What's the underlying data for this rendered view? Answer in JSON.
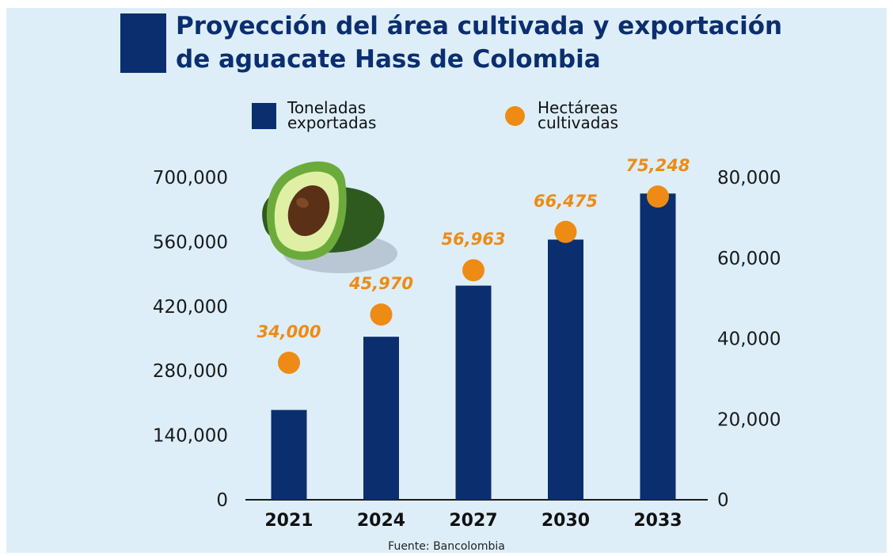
{
  "title_lines": [
    "Proyección del área cultivada y exportación",
    "de aguacate Hass de Colombia"
  ],
  "legend": {
    "bars": [
      "Toneladas",
      "exportadas"
    ],
    "dots": [
      "Hectáreas",
      "cultivadas"
    ]
  },
  "source": "Fuente: Bancolombia",
  "colors": {
    "bar": "#0b2e6f",
    "dot": "#ee8b14",
    "background": "#ddeef9"
  },
  "illustration": "avocado-icon",
  "chart_data": {
    "type": "bar",
    "categories": [
      "2021",
      "2024",
      "2027",
      "2030",
      "2033"
    ],
    "series": [
      {
        "name": "Toneladas exportadas",
        "type": "bar",
        "axis": "left",
        "values": [
          195000,
          354000,
          465000,
          565000,
          665000
        ]
      },
      {
        "name": "Hectáreas cultivadas",
        "type": "scatter",
        "axis": "right",
        "values": [
          34000,
          45970,
          56963,
          66475,
          75248
        ],
        "labels": [
          "34,000",
          "45,970",
          "56,963",
          "66,475",
          "75,248"
        ]
      }
    ],
    "y_left": {
      "ylim": [
        0,
        700000
      ],
      "ticks": [
        "0",
        "140,000",
        "280,000",
        "420,000",
        "560,000",
        "700,000"
      ]
    },
    "y_right": {
      "ylim": [
        0,
        80000
      ],
      "ticks": [
        "0",
        "20,000",
        "40,000",
        "60,000",
        "80,000"
      ]
    },
    "grid": false,
    "legend_position": "top"
  }
}
